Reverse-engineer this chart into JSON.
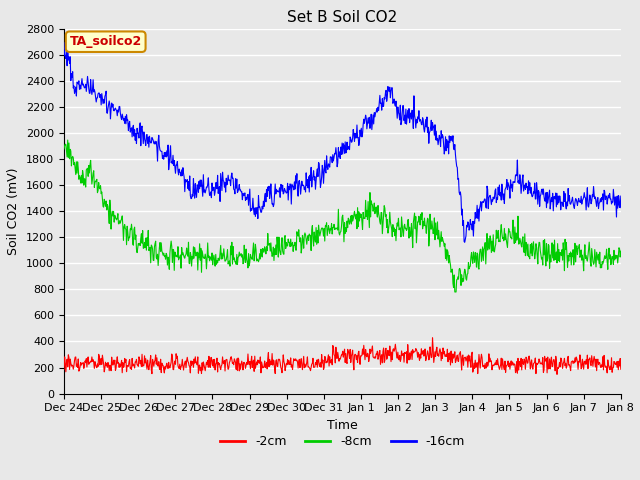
{
  "title": "Set B Soil CO2",
  "ylabel": "Soil CO2 (mV)",
  "xlabel": "Time",
  "annotation_text": "TA_soilco2",
  "annotation_bg": "#FFFFCC",
  "annotation_border": "#CC8800",
  "annotation_text_color": "#CC0000",
  "bg_color": "#E8E8E8",
  "plot_bg_color": "#E8E8E8",
  "grid_color": "#FFFFFF",
  "ylim": [
    0,
    2800
  ],
  "yticks": [
    0,
    200,
    400,
    600,
    800,
    1000,
    1200,
    1400,
    1600,
    1800,
    2000,
    2200,
    2400,
    2600,
    2800
  ],
  "line_colors": {
    "red": "#FF0000",
    "green": "#00CC00",
    "blue": "#0000FF"
  },
  "legend_labels": [
    "-2cm",
    "-8cm",
    "-16cm"
  ],
  "title_fontsize": 11,
  "label_fontsize": 9,
  "tick_fontsize": 8,
  "xtick_labels": [
    "Dec 24",
    "Dec 25",
    "Dec 26",
    "Dec 27",
    "Dec 28",
    "Dec 29",
    "Dec 30",
    "Dec 31",
    "Jan 1",
    "Jan 2",
    "Jan 3",
    "Jan 4",
    "Jan 5",
    "Jan 6",
    "Jan 7",
    "Jan 8"
  ]
}
